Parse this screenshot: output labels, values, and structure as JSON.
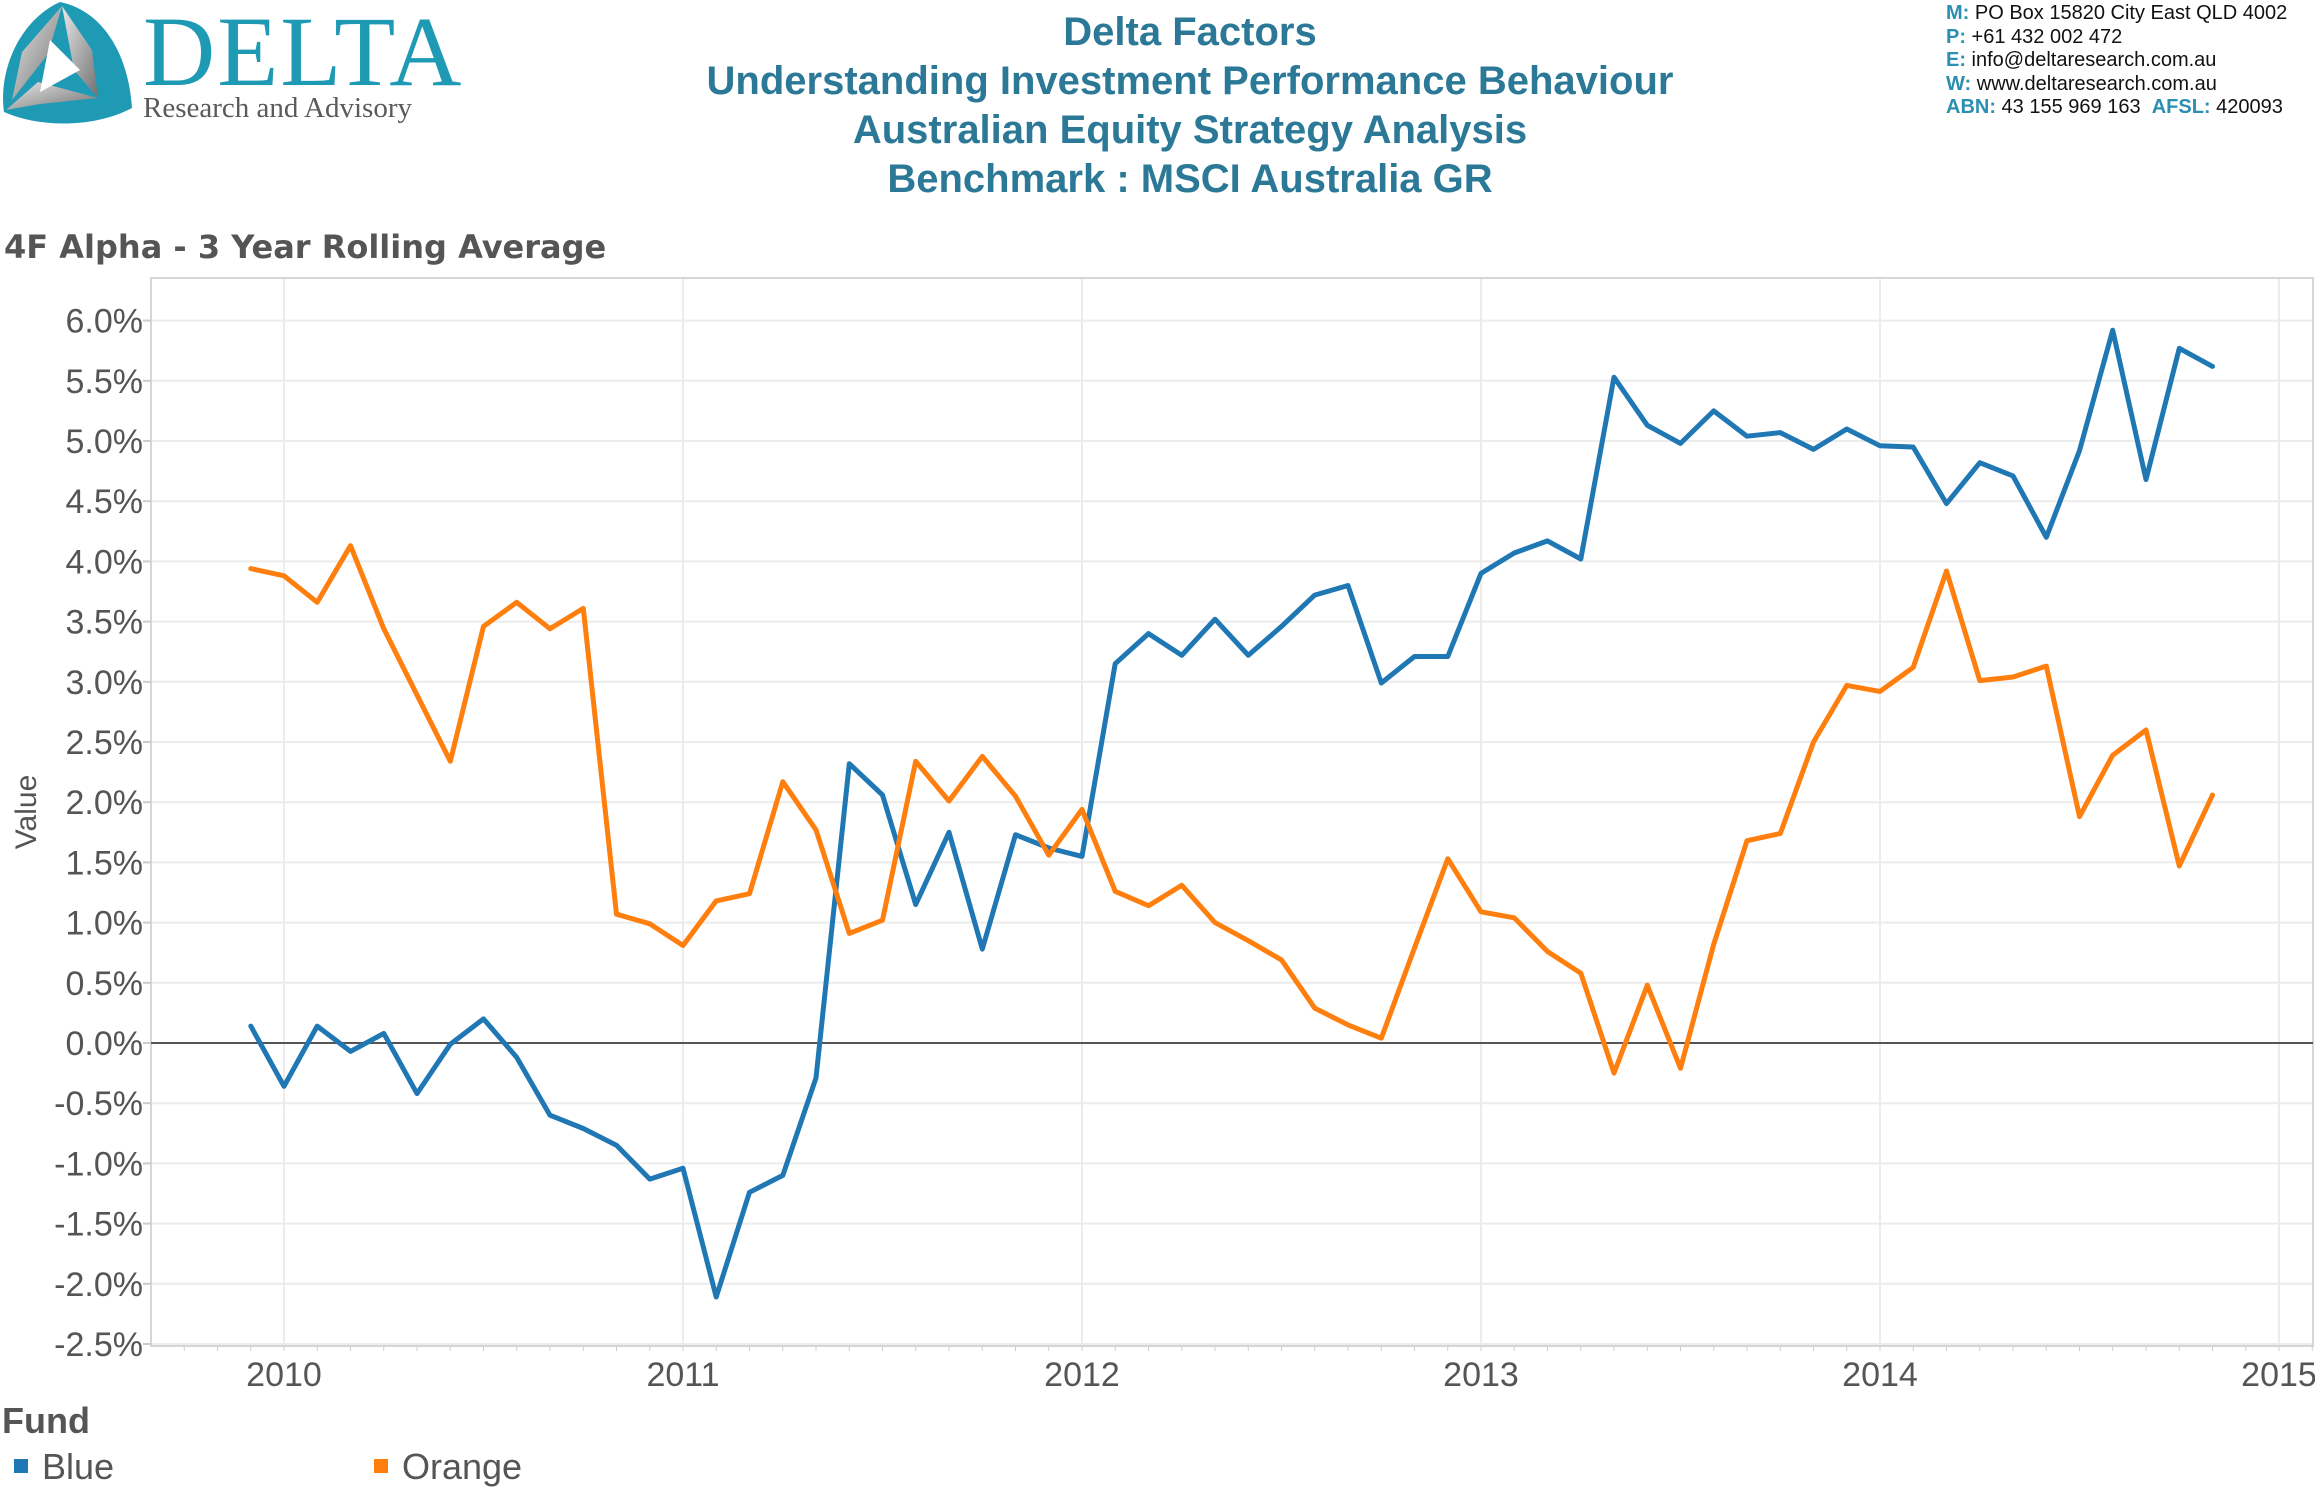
{
  "header": {
    "logo": {
      "word": "DELTA",
      "subtitle": "Research and Advisory",
      "icon": "delta-triangle-logo-icon"
    },
    "title_lines": [
      "Delta Factors",
      "Understanding Investment Performance Behaviour",
      "Australian Equity Strategy Analysis",
      "Benchmark : MSCI Australia GR"
    ],
    "contact": [
      {
        "key": "M:",
        "value": " PO Box 15820 City East QLD 4002"
      },
      {
        "key": "P:",
        "value": " +61 432 002 472"
      },
      {
        "key": "E:",
        "value": " info@deltaresearch.com.au"
      },
      {
        "key": "W:",
        "value": " www.deltaresearch.com.au"
      },
      {
        "key": "ABN:",
        "value": " 43 155 969 163  ",
        "key2": "AFSL:",
        "value2": " 420093"
      }
    ]
  },
  "colors": {
    "blue": "#1f77b4",
    "orange": "#ff7f0e",
    "title": "#2b7897",
    "accent": "#1f9ab5"
  },
  "chart_data": {
    "type": "line",
    "title": "4F Alpha - 3 Year Rolling Average",
    "xlabel": "",
    "ylabel": "Value",
    "x_start": "2009-12",
    "x_frequency": "monthly",
    "x_ticks": [
      "2010",
      "2011",
      "2012",
      "2013",
      "2014",
      "2015"
    ],
    "xlim": [
      "2009-07",
      "2015-02"
    ],
    "y_ticks": [
      "6.0%",
      "5.5%",
      "5.0%",
      "4.5%",
      "4.0%",
      "3.5%",
      "3.0%",
      "2.5%",
      "2.0%",
      "1.5%",
      "1.0%",
      "0.5%",
      "0.0%",
      "-0.5%",
      "-1.0%",
      "-1.5%",
      "-2.0%",
      "-2.5%"
    ],
    "y_tick_values": [
      6.0,
      5.5,
      5.0,
      4.5,
      4.0,
      3.5,
      3.0,
      2.5,
      2.0,
      1.5,
      1.0,
      0.5,
      0.0,
      -0.5,
      -1.0,
      -1.5,
      -2.0,
      -2.5
    ],
    "ylim": [
      -2.6,
      6.4
    ],
    "grid": true,
    "zero_line": true,
    "legend_title": "Fund",
    "legend_position": "bottom-left",
    "series": [
      {
        "name": "Blue",
        "color": "#1f77b4",
        "values": [
          0.14,
          -0.36,
          0.14,
          -0.07,
          0.08,
          -0.42,
          -0.01,
          0.2,
          -0.12,
          -0.6,
          -0.71,
          -0.85,
          -1.13,
          -1.04,
          -2.11,
          -1.24,
          -1.1,
          -0.29,
          2.32,
          2.06,
          1.15,
          1.75,
          0.78,
          1.73,
          1.62,
          1.55,
          3.15,
          3.4,
          3.22,
          3.52,
          3.22,
          3.46,
          3.72,
          3.8,
          2.99,
          3.21,
          3.21,
          3.9,
          4.07,
          4.17,
          4.02,
          5.53,
          5.13,
          4.98,
          5.25,
          5.04,
          5.07,
          4.93,
          5.1,
          4.96,
          4.95,
          4.48,
          4.82,
          4.71,
          4.2,
          4.92,
          5.92,
          4.68,
          5.77,
          5.62
        ]
      },
      {
        "name": "Orange",
        "color": "#ff7f0e",
        "values": [
          3.94,
          3.88,
          3.66,
          4.13,
          3.44,
          2.89,
          2.34,
          3.46,
          3.66,
          3.44,
          3.61,
          1.07,
          0.99,
          0.81,
          1.18,
          1.24,
          2.17,
          1.77,
          0.91,
          1.02,
          2.34,
          2.01,
          2.38,
          2.05,
          1.56,
          1.94,
          1.26,
          1.14,
          1.31,
          1.0,
          0.85,
          0.69,
          0.29,
          0.15,
          0.04,
          0.79,
          1.53,
          1.09,
          1.04,
          0.76,
          0.58,
          -0.25,
          0.48,
          -0.21,
          0.82,
          1.68,
          1.74,
          2.5,
          2.97,
          2.92,
          3.12,
          3.92,
          3.01,
          3.04,
          3.13,
          1.88,
          2.39,
          2.6,
          1.47,
          2.06
        ]
      }
    ]
  }
}
